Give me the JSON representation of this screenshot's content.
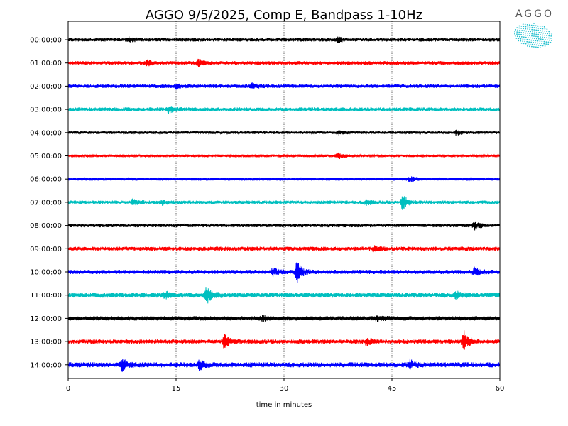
{
  "chart_data": {
    "type": "line",
    "title": "AGGO 9/5/2025, Comp E, Bandpass 1-10Hz",
    "xlabel": "time in minutes",
    "ylabel": "",
    "xlim": [
      0,
      60
    ],
    "x_ticks": [
      0,
      15,
      30,
      45,
      60
    ],
    "vertical_gridlines": [
      15,
      30,
      45
    ],
    "grid": "x dotted",
    "trace_colors_cycle": [
      "#000000",
      "#ff0000",
      "#0000ff",
      "#00bfbf"
    ],
    "traces": [
      {
        "hour_label": "00:00:00",
        "color": "#000000",
        "noise": 2.5,
        "events": [
          {
            "t": 8.5,
            "amp": 3
          },
          {
            "t": 37.5,
            "amp": 3
          }
        ]
      },
      {
        "hour_label": "01:00:00",
        "color": "#ff0000",
        "noise": 2.5,
        "events": [
          {
            "t": 11,
            "amp": 3
          },
          {
            "t": 18,
            "amp": 5
          }
        ]
      },
      {
        "hour_label": "02:00:00",
        "color": "#0000ff",
        "noise": 2.5,
        "events": [
          {
            "t": 15,
            "amp": 3
          },
          {
            "t": 25.5,
            "amp": 4
          }
        ]
      },
      {
        "hour_label": "03:00:00",
        "color": "#00bfbf",
        "noise": 2.8,
        "events": [
          {
            "t": 14,
            "amp": 4
          }
        ]
      },
      {
        "hour_label": "04:00:00",
        "color": "#000000",
        "noise": 2.0,
        "events": [
          {
            "t": 37.5,
            "amp": 3
          },
          {
            "t": 54,
            "amp": 3
          }
        ]
      },
      {
        "hour_label": "05:00:00",
        "color": "#ff0000",
        "noise": 1.8,
        "events": [
          {
            "t": 37.5,
            "amp": 4
          }
        ]
      },
      {
        "hour_label": "06:00:00",
        "color": "#0000ff",
        "noise": 2.2,
        "events": [
          {
            "t": 47.5,
            "amp": 3
          }
        ]
      },
      {
        "hour_label": "07:00:00",
        "color": "#00bfbf",
        "noise": 2.4,
        "events": [
          {
            "t": 9,
            "amp": 4
          },
          {
            "t": 13,
            "amp": 3
          },
          {
            "t": 41.5,
            "amp": 4
          },
          {
            "t": 46.5,
            "amp": 10
          }
        ]
      },
      {
        "hour_label": "08:00:00",
        "color": "#000000",
        "noise": 2.5,
        "events": [
          {
            "t": 56.5,
            "amp": 5
          }
        ]
      },
      {
        "hour_label": "09:00:00",
        "color": "#ff0000",
        "noise": 2.8,
        "events": [
          {
            "t": 42.5,
            "amp": 3
          }
        ]
      },
      {
        "hour_label": "10:00:00",
        "color": "#0000ff",
        "noise": 3.0,
        "events": [
          {
            "t": 28.5,
            "amp": 5
          },
          {
            "t": 31.8,
            "amp": 14
          },
          {
            "t": 56.5,
            "amp": 5
          }
        ]
      },
      {
        "hour_label": "11:00:00",
        "color": "#00bfbf",
        "noise": 3.5,
        "events": [
          {
            "t": 13.5,
            "amp": 4
          },
          {
            "t": 19.2,
            "amp": 13
          },
          {
            "t": 54,
            "amp": 4
          }
        ]
      },
      {
        "hour_label": "12:00:00",
        "color": "#000000",
        "noise": 3.0,
        "events": [
          {
            "t": 27,
            "amp": 3
          },
          {
            "t": 43,
            "amp": 3
          }
        ]
      },
      {
        "hour_label": "13:00:00",
        "color": "#ff0000",
        "noise": 3.0,
        "events": [
          {
            "t": 21.7,
            "amp": 9
          },
          {
            "t": 41.5,
            "amp": 5
          },
          {
            "t": 55,
            "amp": 14
          }
        ]
      },
      {
        "hour_label": "14:00:00",
        "color": "#0000ff",
        "noise": 3.5,
        "events": [
          {
            "t": 7.5,
            "amp": 8
          },
          {
            "t": 18.3,
            "amp": 7
          },
          {
            "t": 47.5,
            "amp": 6
          }
        ]
      }
    ]
  },
  "logo": {
    "text": "AGGO",
    "color": "#22c0cf"
  }
}
